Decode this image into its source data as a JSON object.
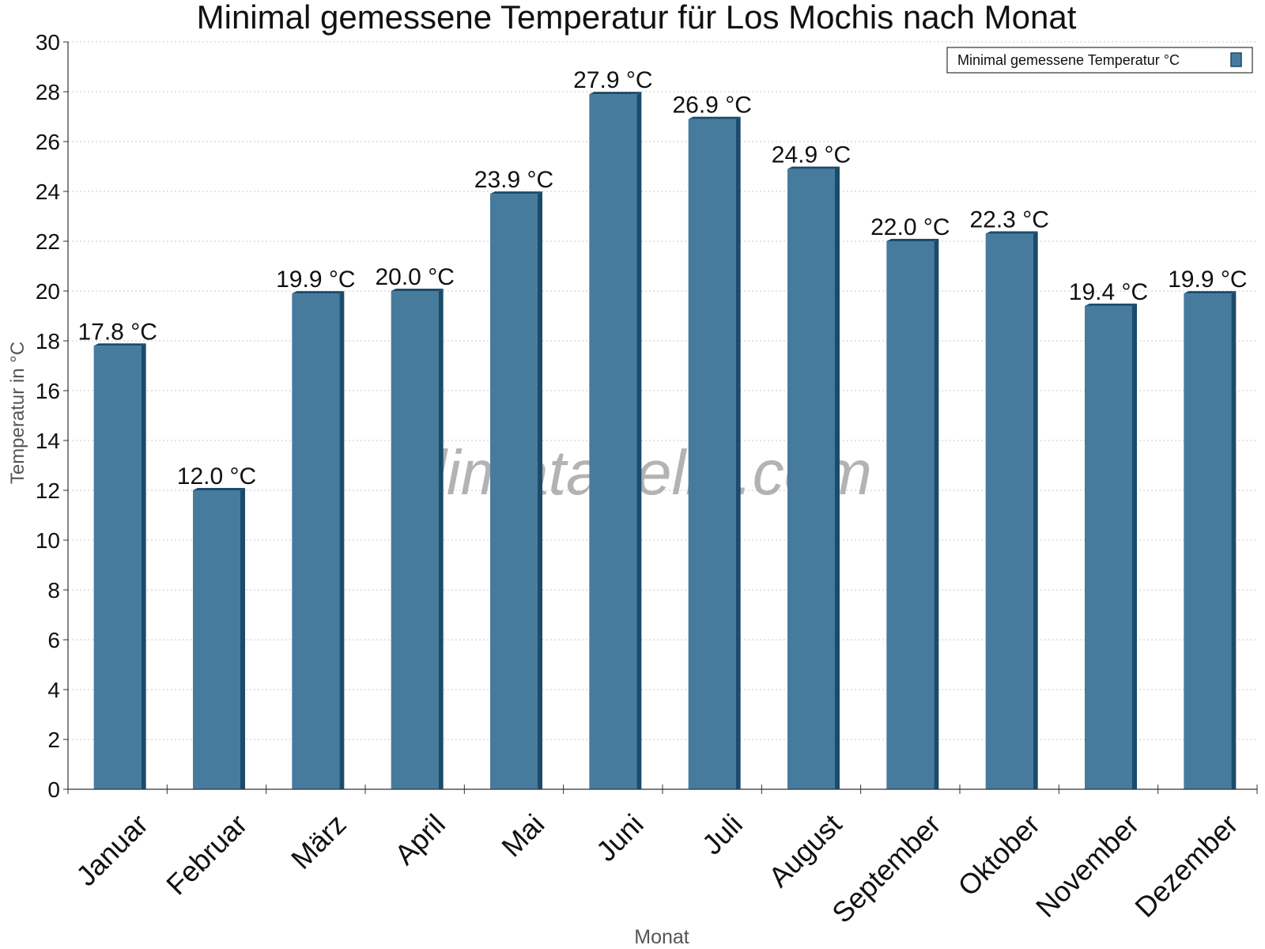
{
  "chart_data": {
    "type": "bar",
    "title": "Minimal gemessene Temperatur für Los Mochis nach Monat",
    "xlabel": "Monat",
    "ylabel": "Temperatur in °C",
    "ylim": [
      0,
      30
    ],
    "yticks": [
      0,
      2,
      4,
      6,
      8,
      10,
      12,
      14,
      16,
      18,
      20,
      22,
      24,
      26,
      28,
      30
    ],
    "grid": true,
    "legend_position": "top-right",
    "categories": [
      "Januar",
      "Februar",
      "März",
      "April",
      "Mai",
      "Juni",
      "Juli",
      "August",
      "September",
      "Oktober",
      "November",
      "Dezember"
    ],
    "series": [
      {
        "name": "Minimal gemessene Temperatur °C",
        "values": [
          17.8,
          12.0,
          19.9,
          20.0,
          23.9,
          27.9,
          26.9,
          24.9,
          22.0,
          22.3,
          19.4,
          19.9
        ],
        "labels": [
          "17.8 °C",
          "12.0 °C",
          "19.9 °C",
          "20.0 °C",
          "23.9 °C",
          "27.9 °C",
          "26.9 °C",
          "24.9 °C",
          "22.0 °C",
          "22.3 °C",
          "19.4 °C",
          "19.9 °C"
        ],
        "color": "#467b9e",
        "edge_color": "#1b4b6b"
      }
    ],
    "watermark": "klimatabelle.com"
  }
}
